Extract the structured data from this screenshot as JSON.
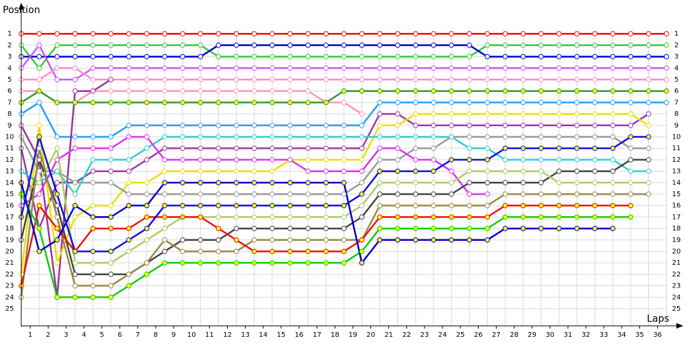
{
  "chart_data": {
    "type": "line",
    "y_title": "Position",
    "x_title": "Laps",
    "x": [
      0,
      1,
      2,
      3,
      4,
      5,
      6,
      7,
      8,
      9,
      10,
      11,
      12,
      13,
      14,
      15,
      16,
      17,
      18,
      19,
      20,
      21,
      22,
      23,
      24,
      25,
      26,
      27,
      28,
      29,
      30,
      31,
      32,
      33,
      34,
      35,
      36
    ],
    "xlim": [
      0,
      36.55
    ],
    "xticks": [
      {
        "value": 0.5,
        "label": "1"
      },
      {
        "value": 1.5,
        "label": "2"
      },
      {
        "value": 2.5,
        "label": "3"
      },
      {
        "value": 3.5,
        "label": "4"
      },
      {
        "value": 4.5,
        "label": "5"
      },
      {
        "value": 5.5,
        "label": "6"
      },
      {
        "value": 6.5,
        "label": "7"
      },
      {
        "value": 7.5,
        "label": "8"
      },
      {
        "value": 8.5,
        "label": "9"
      },
      {
        "value": 9.5,
        "label": "10"
      },
      {
        "value": 10.5,
        "label": "11"
      },
      {
        "value": 11.5,
        "label": "12"
      },
      {
        "value": 12.5,
        "label": "13"
      },
      {
        "value": 13.5,
        "label": "14"
      },
      {
        "value": 14.5,
        "label": "15"
      },
      {
        "value": 15.5,
        "label": "16"
      },
      {
        "value": 16.5,
        "label": "17"
      },
      {
        "value": 17.5,
        "label": "18"
      },
      {
        "value": 18.5,
        "label": "19"
      },
      {
        "value": 19.5,
        "label": "20"
      },
      {
        "value": 20.5,
        "label": "21"
      },
      {
        "value": 21.5,
        "label": "22"
      },
      {
        "value": 22.5,
        "label": "23"
      },
      {
        "value": 23.5,
        "label": "24"
      },
      {
        "value": 24.5,
        "label": "25"
      },
      {
        "value": 25.5,
        "label": "26"
      },
      {
        "value": 26.5,
        "label": "27"
      },
      {
        "value": 27.5,
        "label": "28"
      },
      {
        "value": 28.5,
        "label": "29"
      },
      {
        "value": 29.5,
        "label": "30"
      },
      {
        "value": 30.5,
        "label": "31"
      },
      {
        "value": 31.5,
        "label": "32"
      },
      {
        "value": 32.5,
        "label": "33"
      },
      {
        "value": 33.5,
        "label": "34"
      },
      {
        "value": 34.5,
        "label": "35"
      },
      {
        "value": 35.5,
        "label": "36"
      }
    ],
    "ylim": [
      26.5,
      -0.45
    ],
    "yticks": [
      1,
      2,
      3,
      4,
      5,
      6,
      7,
      8,
      9,
      10,
      11,
      12,
      13,
      14,
      15,
      16,
      17,
      18,
      19,
      20,
      21,
      22,
      23,
      24,
      25
    ],
    "grid": true,
    "series": [
      {
        "color": "#ff0000",
        "values": [
          1,
          1,
          1,
          1,
          1,
          1,
          1,
          1,
          1,
          1,
          1,
          1,
          1,
          1,
          1,
          1,
          1,
          1,
          1,
          1,
          1,
          1,
          1,
          1,
          1,
          1,
          1,
          1,
          1,
          1,
          1,
          1,
          1,
          1,
          1,
          1,
          1
        ]
      },
      {
        "color": "#33cc33",
        "values": [
          2,
          4,
          2,
          2,
          2,
          2,
          2,
          2,
          2,
          2,
          2,
          3,
          3,
          3,
          3,
          3,
          3,
          3,
          3,
          3,
          3,
          3,
          3,
          3,
          3,
          3,
          2,
          2,
          2,
          2,
          2,
          2,
          2,
          2,
          2,
          2,
          2
        ]
      },
      {
        "color": "#0000dd",
        "values": [
          3,
          3,
          3,
          3,
          3,
          3,
          3,
          3,
          3,
          3,
          3,
          2,
          2,
          2,
          2,
          2,
          2,
          2,
          2,
          2,
          2,
          2,
          2,
          2,
          2,
          2,
          3,
          3,
          3,
          3,
          3,
          3,
          3,
          3,
          3,
          3,
          3
        ]
      },
      {
        "color": "#cc55ff",
        "values": [
          4,
          2,
          5,
          5,
          4,
          4,
          4,
          4,
          4,
          4,
          4,
          4,
          4,
          4,
          4,
          4,
          4,
          4,
          4,
          4,
          4,
          4,
          4,
          4,
          4,
          4,
          4,
          4,
          4,
          4,
          4,
          4,
          4,
          4,
          4,
          4,
          4
        ]
      },
      {
        "color": "#ff88cc",
        "values": [
          5,
          5,
          4,
          4,
          5,
          5,
          5,
          5,
          5,
          5,
          5,
          5,
          5,
          5,
          5,
          5,
          5,
          5,
          5,
          5,
          5,
          5,
          5,
          5,
          5,
          5,
          5,
          5,
          5,
          5,
          5,
          5,
          5,
          5,
          5,
          5,
          5
        ]
      },
      {
        "color": "#ff99aa",
        "values": [
          6,
          6,
          7,
          7,
          6,
          6,
          6,
          6,
          6,
          6,
          6,
          6,
          6,
          6,
          6,
          6,
          6,
          7,
          7,
          8,
          null,
          null,
          null,
          null,
          null,
          null,
          null,
          null,
          null,
          null,
          null,
          null,
          null,
          null,
          null,
          null,
          null
        ]
      },
      {
        "color": "#339933",
        "marker_fill": "#ffff00",
        "values": [
          7,
          6,
          7,
          7,
          7,
          7,
          7,
          7,
          7,
          7,
          7,
          7,
          7,
          7,
          7,
          7,
          7,
          7,
          6,
          6,
          6,
          6,
          6,
          6,
          6,
          6,
          6,
          6,
          6,
          6,
          6,
          6,
          6,
          6,
          6,
          6,
          6
        ]
      },
      {
        "color": "#22a0ff",
        "values": [
          8,
          7,
          10,
          10,
          10,
          10,
          9,
          9,
          9,
          9,
          9,
          9,
          9,
          9,
          9,
          9,
          9,
          9,
          9,
          9,
          7,
          7,
          7,
          7,
          7,
          7,
          7,
          7,
          7,
          7,
          7,
          7,
          7,
          7,
          7,
          7,
          7
        ]
      },
      {
        "color": "#993399",
        "values": [
          9,
          12,
          24,
          6,
          6,
          5,
          null,
          null,
          null,
          null,
          null,
          null,
          null,
          null,
          null,
          null,
          null,
          null,
          null,
          null,
          null,
          null,
          null,
          null,
          null,
          null,
          null,
          null,
          null,
          null,
          null,
          null,
          null,
          null,
          null,
          null,
          null
        ]
      },
      {
        "color": "#9b3aa0",
        "values": [
          11,
          18,
          14,
          14,
          13,
          13,
          13,
          12,
          11,
          11,
          11,
          11,
          11,
          11,
          11,
          11,
          11,
          11,
          11,
          11,
          8,
          8,
          9,
          9,
          9,
          9,
          9,
          9,
          9,
          9,
          9,
          9,
          9,
          9,
          9,
          8,
          null
        ]
      },
      {
        "color": "#e8e000",
        "values": [
          22,
          9,
          21,
          17,
          16,
          16,
          14,
          14,
          13,
          13,
          13,
          13,
          13,
          13,
          13,
          12,
          12,
          12,
          12,
          12,
          9,
          9,
          8,
          8,
          8,
          8,
          8,
          8,
          8,
          8,
          8,
          8,
          8,
          8,
          8,
          9,
          null
        ]
      },
      {
        "color": "#999999",
        "values": [
          10,
          13,
          13,
          14,
          14,
          14,
          15,
          15,
          15,
          15,
          15,
          15,
          15,
          15,
          15,
          15,
          15,
          15,
          15,
          14,
          12,
          12,
          11,
          11,
          10,
          10,
          10,
          10,
          10,
          10,
          10,
          10,
          10,
          10,
          11,
          11,
          null
        ]
      },
      {
        "color": "#33cccc",
        "values": [
          13,
          14,
          13,
          15,
          12,
          12,
          12,
          11,
          10,
          10,
          10,
          10,
          10,
          10,
          10,
          10,
          10,
          10,
          10,
          10,
          10,
          10,
          10,
          10,
          10,
          11,
          11,
          12,
          12,
          12,
          12,
          12,
          12,
          12,
          13,
          13,
          null
        ]
      },
      {
        "color": "#dd33ee",
        "values": [
          16,
          15,
          12,
          11,
          11,
          11,
          10,
          10,
          12,
          12,
          12,
          12,
          12,
          12,
          12,
          12,
          13,
          13,
          13,
          13,
          11,
          11,
          12,
          12,
          13,
          15,
          15,
          null,
          null,
          null,
          null,
          null,
          null,
          null,
          null,
          null,
          null
        ]
      },
      {
        "color": "#444444",
        "values": [
          19,
          12,
          16,
          22,
          22,
          22,
          22,
          21,
          20,
          19,
          19,
          19,
          18,
          18,
          18,
          18,
          18,
          18,
          18,
          17,
          15,
          15,
          15,
          15,
          15,
          14,
          14,
          14,
          14,
          14,
          13,
          13,
          13,
          13,
          12,
          12,
          null
        ]
      },
      {
        "color": "#aacc66",
        "values": [
          15,
          14,
          11,
          21,
          21,
          21,
          20,
          19,
          18,
          17,
          17,
          17,
          17,
          17,
          17,
          17,
          17,
          17,
          17,
          16,
          14,
          14,
          14,
          14,
          14,
          13,
          13,
          13,
          13,
          13,
          14,
          14,
          14,
          14,
          14,
          14,
          null
        ]
      },
      {
        "color": "#998844",
        "values": [
          24,
          11,
          17,
          23,
          23,
          23,
          22,
          21,
          19,
          20,
          20,
          20,
          20,
          19,
          19,
          19,
          19,
          19,
          19,
          19,
          16,
          16,
          16,
          16,
          16,
          16,
          16,
          15,
          15,
          15,
          15,
          15,
          15,
          15,
          15,
          15,
          null
        ]
      },
      {
        "color": "#ee1111",
        "marker_fill": "#ffff00",
        "values": [
          23,
          16,
          18,
          20,
          18,
          18,
          18,
          17,
          17,
          17,
          17,
          18,
          19,
          20,
          20,
          20,
          20,
          20,
          20,
          19,
          17,
          17,
          17,
          17,
          17,
          17,
          17,
          16,
          16,
          16,
          16,
          16,
          16,
          16,
          16,
          null,
          null
        ]
      },
      {
        "color": "#11cc11",
        "marker_fill": "#ffff00",
        "values": [
          15,
          18,
          24,
          24,
          24,
          24,
          23,
          22,
          21,
          21,
          21,
          21,
          21,
          21,
          21,
          21,
          21,
          21,
          21,
          20,
          18,
          18,
          18,
          18,
          18,
          18,
          18,
          17,
          17,
          17,
          17,
          17,
          17,
          17,
          17,
          null,
          null
        ]
      },
      {
        "color": "#0000cc",
        "marker_fill": "#ffff00",
        "values": [
          14,
          20,
          19,
          16,
          17,
          17,
          16,
          16,
          14,
          14,
          14,
          14,
          14,
          14,
          14,
          14,
          14,
          14,
          14,
          21,
          19,
          19,
          19,
          19,
          19,
          19,
          19,
          18,
          18,
          18,
          18,
          18,
          18,
          18,
          null,
          null,
          null
        ]
      },
      {
        "color": "#1111dd",
        "marker_fill": "#ffff00",
        "values": [
          17,
          10,
          15,
          20,
          20,
          20,
          19,
          18,
          16,
          16,
          16,
          16,
          16,
          16,
          16,
          16,
          16,
          16,
          16,
          15,
          13,
          13,
          13,
          13,
          12,
          12,
          12,
          11,
          11,
          11,
          11,
          11,
          11,
          11,
          10,
          10,
          null
        ]
      }
    ]
  }
}
